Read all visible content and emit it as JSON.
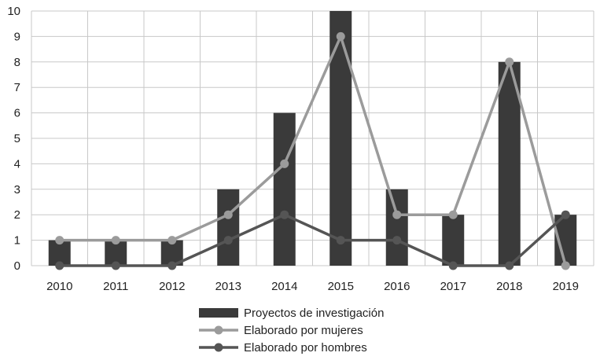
{
  "chart_data": {
    "type": "bar",
    "categories": [
      "2010",
      "2011",
      "2012",
      "2013",
      "2014",
      "2015",
      "2016",
      "2017",
      "2018",
      "2019"
    ],
    "ylim": [
      0,
      10
    ],
    "yticks": [
      0,
      1,
      2,
      3,
      4,
      5,
      6,
      7,
      8,
      9,
      10
    ],
    "grid": true,
    "legend_position": "bottom",
    "series": [
      {
        "name": "Proyectos de investigación",
        "kind": "bar",
        "color": "#3a3a3a",
        "values": [
          1,
          1,
          1,
          3,
          6,
          10,
          3,
          2,
          8,
          2
        ]
      },
      {
        "name": "Elaborado por mujeres",
        "kind": "line",
        "color": "#9b9b9b",
        "values": [
          1,
          1,
          1,
          2,
          4,
          9,
          2,
          2,
          8,
          0
        ]
      },
      {
        "name": "Elaborado por hombres",
        "kind": "line",
        "color": "#555555",
        "values": [
          0,
          0,
          0,
          1,
          2,
          1,
          1,
          0,
          0,
          2
        ]
      }
    ]
  }
}
